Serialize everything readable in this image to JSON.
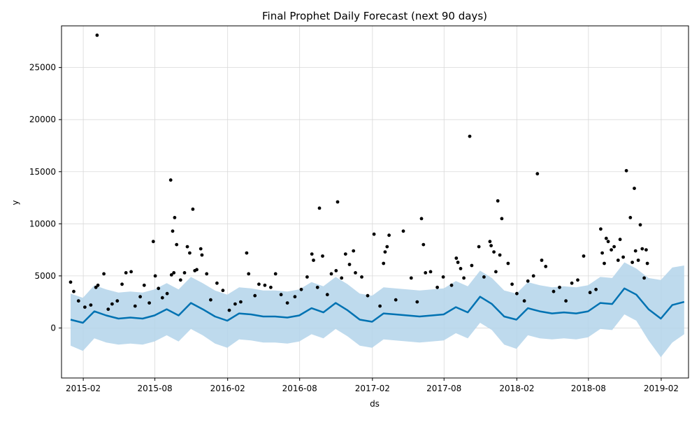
{
  "chart_data": {
    "type": "line",
    "title": "Final Prophet Daily Forecast (next 90 days)",
    "xlabel": "ds",
    "ylabel": "y",
    "x_range": [
      "2014-12-08",
      "2019-04-11"
    ],
    "ylim": [
      -4800,
      29000
    ],
    "grid": true,
    "legend": "none",
    "x_ticks": [
      "2015-02",
      "2015-08",
      "2016-02",
      "2016-08",
      "2017-02",
      "2017-08",
      "2018-02",
      "2018-08",
      "2019-02"
    ],
    "y_ticks": [
      0,
      5000,
      10000,
      15000,
      20000,
      25000
    ],
    "colors": {
      "observed": "#000000",
      "forecast": "#0072B2",
      "interval": "#b3d4ea"
    },
    "forecast_horizon_start": "2018-12-31",
    "forecast_end": "2019-03-31",
    "series": [
      {
        "kind": "forecast",
        "x": [
          "2014-12-31",
          "2015-01-31",
          "2015-03-01",
          "2015-03-31",
          "2015-05-01",
          "2015-05-31",
          "2015-07-01",
          "2015-07-31",
          "2015-08-31",
          "2015-09-30",
          "2015-10-31",
          "2015-11-30",
          "2015-12-31",
          "2016-01-31",
          "2016-03-01",
          "2016-03-31",
          "2016-05-01",
          "2016-05-31",
          "2016-07-01",
          "2016-07-31",
          "2016-08-31",
          "2016-09-30",
          "2016-10-31",
          "2016-11-30",
          "2016-12-31",
          "2017-01-31",
          "2017-03-01",
          "2017-03-31",
          "2017-05-01",
          "2017-05-31",
          "2017-07-01",
          "2017-07-31",
          "2017-08-31",
          "2017-09-30",
          "2017-10-31",
          "2017-11-30",
          "2017-12-31",
          "2018-01-31",
          "2018-03-01",
          "2018-03-31",
          "2018-05-01",
          "2018-05-31",
          "2018-07-01",
          "2018-07-31",
          "2018-08-31",
          "2018-09-30",
          "2018-10-31",
          "2018-11-30",
          "2018-12-31",
          "2019-01-31",
          "2019-03-01",
          "2019-03-31"
        ],
        "yhat": [
          800,
          500,
          1600,
          1200,
          900,
          1000,
          900,
          1200,
          1800,
          1200,
          2400,
          1800,
          1100,
          700,
          1400,
          1300,
          1100,
          1100,
          1000,
          1200,
          1900,
          1500,
          2400,
          1700,
          800,
          600,
          1400,
          1300,
          1200,
          1100,
          1200,
          1300,
          2000,
          1500,
          3000,
          2300,
          1100,
          800,
          1900,
          1600,
          1400,
          1500,
          1400,
          1600,
          2400,
          2300,
          3800,
          3200,
          1800,
          900,
          2200,
          2500
        ],
        "yhat_lower": [
          -1700,
          -2200,
          -1000,
          -1400,
          -1600,
          -1500,
          -1600,
          -1300,
          -700,
          -1300,
          -100,
          -700,
          -1500,
          -1900,
          -1100,
          -1200,
          -1400,
          -1400,
          -1500,
          -1300,
          -600,
          -1000,
          -100,
          -800,
          -1700,
          -1900,
          -1100,
          -1200,
          -1300,
          -1400,
          -1300,
          -1200,
          -500,
          -1000,
          500,
          -200,
          -1600,
          -2000,
          -700,
          -1000,
          -1100,
          -1000,
          -1100,
          -900,
          -100,
          -200,
          1300,
          700,
          -1200,
          -2800,
          -1400,
          -600
        ],
        "yhat_upper": [
          3300,
          2900,
          4100,
          3700,
          3400,
          3500,
          3400,
          3700,
          4300,
          3700,
          4900,
          4300,
          3600,
          3200,
          3900,
          3800,
          3600,
          3600,
          3500,
          3700,
          4400,
          4000,
          4900,
          4200,
          3300,
          3100,
          3900,
          3800,
          3700,
          3600,
          3700,
          3800,
          4500,
          4000,
          5500,
          4800,
          3600,
          3300,
          4400,
          4100,
          3900,
          4000,
          3900,
          4100,
          4900,
          4800,
          6300,
          5700,
          4800,
          4600,
          5800,
          6000
        ]
      },
      {
        "kind": "observed",
        "points": [
          [
            "2014-12-31",
            4400
          ],
          [
            "2015-01-08",
            3500
          ],
          [
            "2015-01-20",
            2600
          ],
          [
            "2015-02-05",
            2000
          ],
          [
            "2015-02-20",
            2200
          ],
          [
            "2015-03-08",
            28100
          ],
          [
            "2015-03-05",
            3900
          ],
          [
            "2015-03-10",
            4100
          ],
          [
            "2015-03-25",
            5200
          ],
          [
            "2015-04-05",
            1800
          ],
          [
            "2015-04-15",
            2300
          ],
          [
            "2015-04-28",
            2600
          ],
          [
            "2015-05-10",
            4200
          ],
          [
            "2015-05-20",
            5300
          ],
          [
            "2015-06-02",
            5400
          ],
          [
            "2015-06-12",
            2100
          ],
          [
            "2015-06-25",
            3000
          ],
          [
            "2015-07-05",
            4100
          ],
          [
            "2015-07-18",
            2400
          ],
          [
            "2015-07-28",
            8300
          ],
          [
            "2015-08-02",
            5000
          ],
          [
            "2015-08-10",
            3800
          ],
          [
            "2015-08-20",
            2900
          ],
          [
            "2015-09-01",
            3300
          ],
          [
            "2015-09-10",
            14200
          ],
          [
            "2015-09-12",
            5100
          ],
          [
            "2015-09-15",
            9300
          ],
          [
            "2015-09-18",
            5300
          ],
          [
            "2015-09-20",
            10600
          ],
          [
            "2015-09-25",
            8000
          ],
          [
            "2015-10-05",
            4600
          ],
          [
            "2015-10-15",
            5300
          ],
          [
            "2015-10-22",
            7800
          ],
          [
            "2015-10-28",
            7200
          ],
          [
            "2015-11-05",
            11400
          ],
          [
            "2015-11-10",
            5500
          ],
          [
            "2015-11-15",
            5600
          ],
          [
            "2015-11-25",
            7600
          ],
          [
            "2015-11-28",
            7000
          ],
          [
            "2015-12-10",
            5200
          ],
          [
            "2015-12-20",
            2700
          ],
          [
            "2016-01-05",
            4300
          ],
          [
            "2016-01-20",
            3600
          ],
          [
            "2016-02-05",
            1700
          ],
          [
            "2016-02-20",
            2300
          ],
          [
            "2016-03-05",
            2500
          ],
          [
            "2016-03-20",
            7200
          ],
          [
            "2016-03-25",
            5200
          ],
          [
            "2016-04-10",
            3100
          ],
          [
            "2016-04-20",
            4200
          ],
          [
            "2016-05-05",
            4100
          ],
          [
            "2016-05-20",
            3900
          ],
          [
            "2016-06-01",
            5200
          ],
          [
            "2016-06-15",
            3200
          ],
          [
            "2016-07-01",
            2400
          ],
          [
            "2016-07-20",
            3000
          ],
          [
            "2016-08-05",
            3700
          ],
          [
            "2016-08-20",
            4900
          ],
          [
            "2016-09-01",
            7100
          ],
          [
            "2016-09-05",
            6500
          ],
          [
            "2016-09-15",
            3900
          ],
          [
            "2016-09-20",
            11500
          ],
          [
            "2016-09-28",
            6900
          ],
          [
            "2016-10-10",
            3200
          ],
          [
            "2016-10-20",
            5200
          ],
          [
            "2016-11-01",
            5500
          ],
          [
            "2016-11-05",
            12100
          ],
          [
            "2016-11-15",
            4800
          ],
          [
            "2016-11-25",
            7100
          ],
          [
            "2016-12-05",
            6100
          ],
          [
            "2016-12-15",
            7400
          ],
          [
            "2016-12-20",
            5300
          ],
          [
            "2017-01-05",
            4900
          ],
          [
            "2017-01-20",
            3100
          ],
          [
            "2017-02-05",
            9000
          ],
          [
            "2017-02-20",
            2100
          ],
          [
            "2017-03-01",
            6200
          ],
          [
            "2017-03-05",
            7300
          ],
          [
            "2017-03-10",
            7800
          ],
          [
            "2017-03-15",
            8900
          ],
          [
            "2017-04-01",
            2700
          ],
          [
            "2017-04-20",
            9300
          ],
          [
            "2017-05-10",
            4800
          ],
          [
            "2017-05-25",
            2500
          ],
          [
            "2017-06-05",
            10500
          ],
          [
            "2017-06-10",
            8000
          ],
          [
            "2017-06-15",
            5300
          ],
          [
            "2017-06-28",
            5400
          ],
          [
            "2017-07-15",
            3900
          ],
          [
            "2017-07-30",
            4900
          ],
          [
            "2017-08-20",
            4100
          ],
          [
            "2017-09-01",
            6700
          ],
          [
            "2017-09-05",
            6300
          ],
          [
            "2017-09-12",
            5700
          ],
          [
            "2017-09-20",
            4800
          ],
          [
            "2017-10-05",
            18400
          ],
          [
            "2017-10-10",
            6000
          ],
          [
            "2017-10-28",
            7800
          ],
          [
            "2017-11-10",
            4900
          ],
          [
            "2017-11-25",
            8300
          ],
          [
            "2017-11-28",
            7900
          ],
          [
            "2017-12-05",
            7300
          ],
          [
            "2017-12-10",
            5400
          ],
          [
            "2017-12-15",
            12200
          ],
          [
            "2017-12-20",
            7000
          ],
          [
            "2017-12-25",
            10500
          ],
          [
            "2018-01-10",
            6200
          ],
          [
            "2018-01-20",
            4200
          ],
          [
            "2018-02-01",
            3300
          ],
          [
            "2018-02-20",
            2600
          ],
          [
            "2018-03-01",
            4500
          ],
          [
            "2018-03-15",
            5000
          ],
          [
            "2018-03-25",
            14800
          ],
          [
            "2018-04-05",
            6500
          ],
          [
            "2018-04-15",
            5900
          ],
          [
            "2018-05-05",
            3500
          ],
          [
            "2018-05-20",
            3900
          ],
          [
            "2018-06-05",
            2600
          ],
          [
            "2018-06-20",
            4300
          ],
          [
            "2018-07-05",
            4600
          ],
          [
            "2018-07-20",
            6900
          ],
          [
            "2018-08-05",
            3400
          ],
          [
            "2018-08-20",
            3700
          ],
          [
            "2018-09-01",
            9500
          ],
          [
            "2018-09-05",
            7200
          ],
          [
            "2018-09-10",
            6200
          ],
          [
            "2018-09-15",
            8600
          ],
          [
            "2018-09-20",
            8300
          ],
          [
            "2018-09-28",
            7500
          ],
          [
            "2018-10-05",
            7800
          ],
          [
            "2018-10-15",
            6500
          ],
          [
            "2018-10-20",
            8500
          ],
          [
            "2018-10-28",
            6800
          ],
          [
            "2018-11-05",
            15100
          ],
          [
            "2018-11-15",
            10600
          ],
          [
            "2018-11-20",
            6300
          ],
          [
            "2018-11-25",
            13400
          ],
          [
            "2018-11-28",
            7400
          ],
          [
            "2018-12-05",
            6500
          ],
          [
            "2018-12-10",
            9900
          ],
          [
            "2018-12-15",
            7600
          ],
          [
            "2018-12-20",
            4800
          ],
          [
            "2018-12-25",
            7500
          ],
          [
            "2018-12-28",
            6200
          ]
        ]
      }
    ]
  }
}
